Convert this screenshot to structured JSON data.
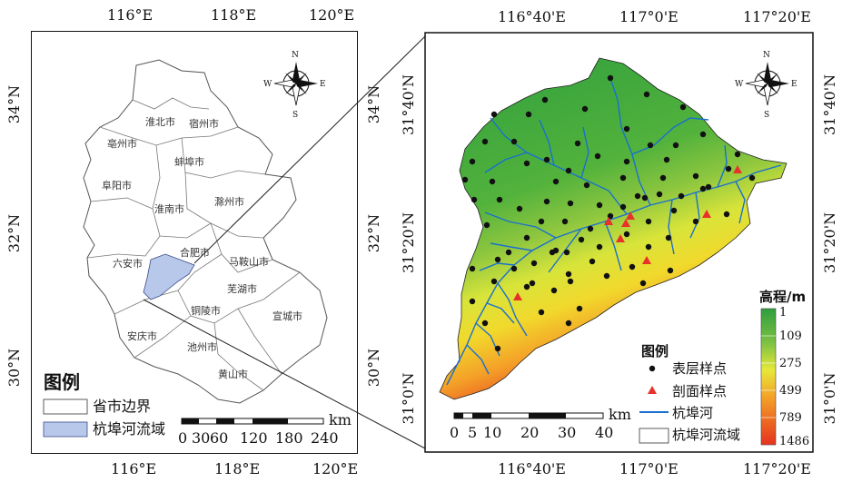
{
  "left_map": {
    "top_lon": [
      "116°E",
      "118°E",
      "120°E"
    ],
    "bottom_lon": [
      "116°E",
      "118°E",
      "120°E"
    ],
    "left_lat": [
      "34°N",
      "32°N",
      "30°N"
    ],
    "right_lat": [
      "34°N",
      "32°N",
      "30°N"
    ],
    "cities": [
      {
        "name": "淮北市"
      },
      {
        "name": "宿州市"
      },
      {
        "name": "亳州市"
      },
      {
        "name": "蚌埠市"
      },
      {
        "name": "阜阳市"
      },
      {
        "name": "淮南市"
      },
      {
        "name": "滁州市"
      },
      {
        "name": "六安市"
      },
      {
        "name": "合肥市"
      },
      {
        "name": "马鞍山市"
      },
      {
        "name": "芜湖市"
      },
      {
        "name": "铜陵市"
      },
      {
        "name": "宣城市"
      },
      {
        "name": "安庆市"
      },
      {
        "name": "池州市"
      },
      {
        "name": "黄山市"
      }
    ],
    "legend": {
      "title": "图例",
      "items": [
        {
          "label": "省市边界",
          "color": "#ffffff"
        },
        {
          "label": "杭埠河流域",
          "color": "#b8c8ea"
        }
      ]
    },
    "scale": {
      "unit": "km",
      "ticks": [
        "0",
        "30",
        "60",
        "120",
        "180",
        "240"
      ]
    },
    "compass": {
      "n": "N",
      "s": "S",
      "e": "E",
      "w": "W"
    }
  },
  "right_map": {
    "top_lon": [
      "116°40'E",
      "117°0'E",
      "117°20'E"
    ],
    "bottom_lon": [
      "116°40'E",
      "117°0'E",
      "117°20'E"
    ],
    "left_lat": [
      "31°40'N",
      "31°20'N",
      "31°0'N"
    ],
    "right_lat": [
      "31°40'N",
      "31°20'N",
      "31°0'N"
    ],
    "elevation_legend": {
      "title": "高程/m",
      "values": [
        "1",
        "109",
        "275",
        "499",
        "789",
        "1486"
      ],
      "colors": [
        "#2e9e3e",
        "#7cc142",
        "#e6e83a",
        "#f4a128",
        "#e6331e"
      ]
    },
    "legend": {
      "title": "图例",
      "items": [
        {
          "label": "表层样点",
          "symbol": "dot"
        },
        {
          "label": "剖面样点",
          "symbol": "triangle"
        },
        {
          "label": "杭埠河",
          "symbol": "line"
        },
        {
          "label": "杭埠河流域",
          "symbol": "box"
        }
      ]
    },
    "scale": {
      "unit": "km",
      "ticks": [
        "0",
        "5",
        "10",
        "20",
        "30",
        "40"
      ]
    },
    "compass": {
      "n": "N",
      "s": "S",
      "e": "E",
      "w": "W"
    }
  },
  "colors": {
    "river": "#1a6fd0",
    "sample_dot": "#111111",
    "profile_triangle": "#e8312a",
    "basin_fill": "#b8c8ea"
  }
}
